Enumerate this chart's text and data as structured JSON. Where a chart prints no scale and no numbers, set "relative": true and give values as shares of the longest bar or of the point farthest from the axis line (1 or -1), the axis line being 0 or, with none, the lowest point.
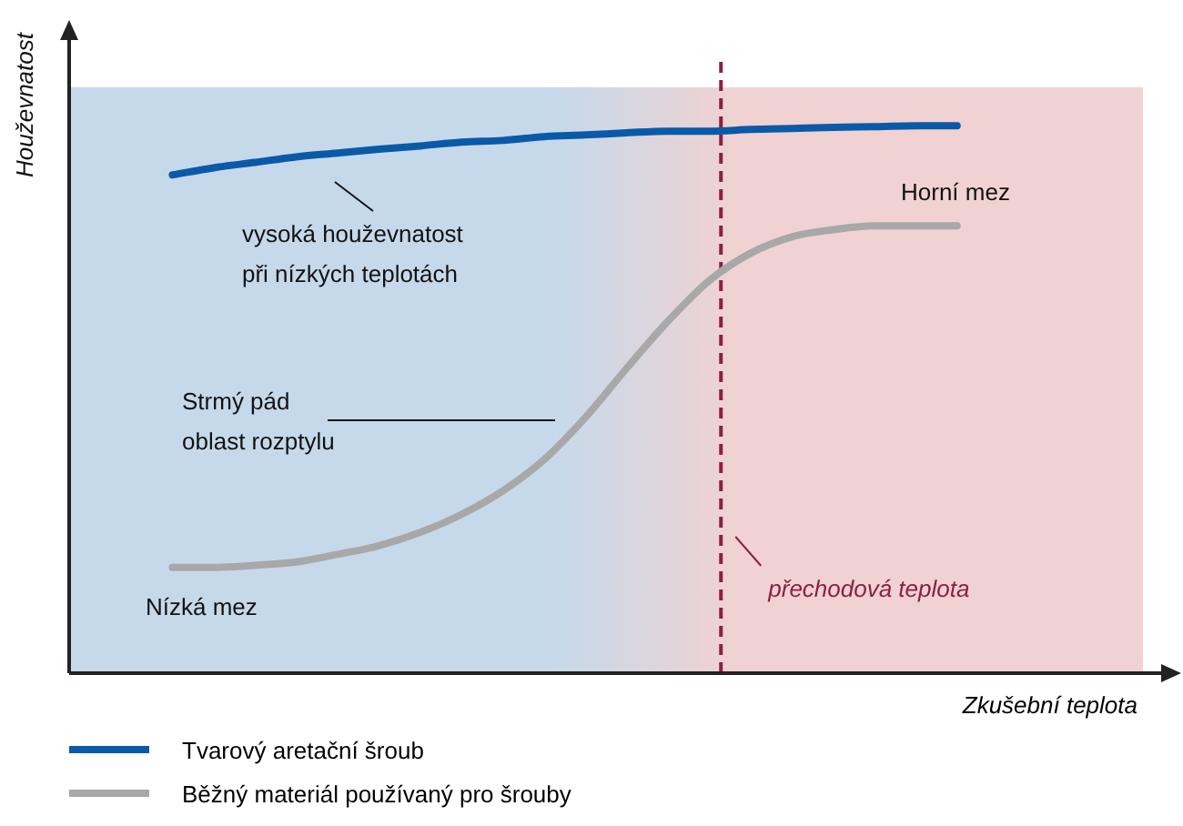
{
  "chart_data": {
    "type": "line",
    "relative": true,
    "xlabel": "Zkušební teplota",
    "ylabel": "Houževnatost",
    "legend": "bottom",
    "marker": "none",
    "line_style": "solid",
    "categories": [
      null,
      null,
      null,
      null,
      null,
      null,
      null,
      null,
      null,
      null,
      null,
      null,
      null,
      null,
      null,
      null,
      null,
      null,
      null,
      null,
      null,
      null,
      null,
      null,
      null,
      null
    ],
    "series": [
      {
        "name": "Tvarový aretační šroub",
        "color": "#0a5aa8",
        "values": [
          null,
          null,
          0.91,
          0.923,
          0.933,
          0.943,
          0.95,
          0.957,
          0.963,
          0.97,
          0.973,
          0.98,
          0.983,
          0.987,
          0.99,
          0.99,
          0.993,
          0.995,
          0.997,
          0.998,
          1,
          1,
          null,
          null,
          null,
          null
        ]
      },
      {
        "name": "Běžný materiál používaný pro šrouby",
        "color": "#a8a8a8",
        "values": [
          null,
          null,
          0.193,
          0.193,
          0.197,
          0.203,
          0.217,
          0.233,
          0.257,
          0.29,
          0.333,
          0.39,
          0.467,
          0.557,
          0.643,
          0.717,
          0.767,
          0.797,
          0.81,
          0.817,
          0.817,
          0.817,
          null,
          null,
          null,
          null
        ]
      }
    ],
    "ref_lines": [
      {
        "axis": "x",
        "label": "přechodová teplota",
        "color": "#8b2043",
        "line_style": "dashed"
      }
    ],
    "annotations": [
      "vysoká houževnatost\npři nízkých teplotách",
      "Strmý pád\noblast rozptylu",
      "Horní mez",
      "Nízká mez"
    ]
  }
}
